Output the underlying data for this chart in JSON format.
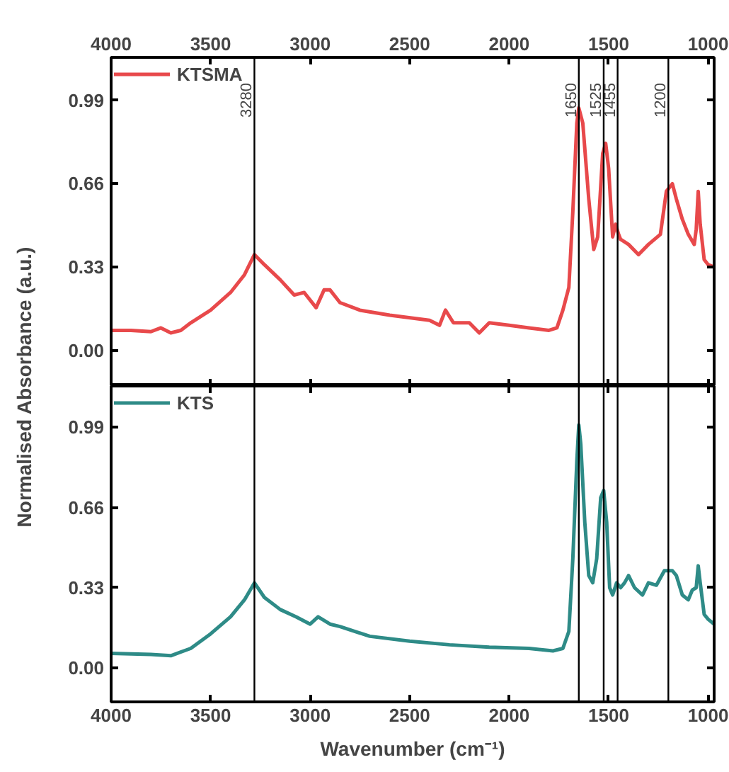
{
  "chart_data": [
    {
      "type": "line",
      "ylabel": "Normalised Absorbance (a.u.)",
      "xlim": [
        4000,
        970
      ],
      "xticks": [
        4000,
        3500,
        3000,
        2500,
        2000,
        1500,
        1000
      ],
      "ylim": [
        -0.14,
        1.16
      ],
      "yticks": [
        {
          "value": 0,
          "label": "0.00"
        },
        0.33,
        0.66,
        0.99
      ],
      "legend": "top left",
      "grid": false,
      "ref_lines": [
        {
          "axis": "x",
          "value": 3280,
          "label": "3280"
        },
        {
          "axis": "x",
          "value": 1650,
          "label": "1650"
        },
        {
          "axis": "x",
          "value": 1525,
          "label": "1525"
        },
        {
          "axis": "x",
          "value": 1455,
          "label": "1455"
        },
        {
          "axis": "x",
          "value": 1200,
          "label": "1200"
        }
      ],
      "series": [
        {
          "name": "KTSMA",
          "color": "#e8494b",
          "x": [
            4000,
            3900,
            3800,
            3750,
            3700,
            3650,
            3600,
            3500,
            3400,
            3330,
            3280,
            3230,
            3150,
            3080,
            3030,
            2970,
            2930,
            2900,
            2850,
            2750,
            2600,
            2400,
            2350,
            2320,
            2280,
            2200,
            2150,
            2100,
            2000,
            1900,
            1800,
            1760,
            1730,
            1700,
            1680,
            1660,
            1650,
            1630,
            1600,
            1575,
            1555,
            1530,
            1515,
            1500,
            1480,
            1465,
            1450,
            1440,
            1400,
            1350,
            1300,
            1240,
            1210,
            1180,
            1160,
            1130,
            1100,
            1070,
            1060,
            1050,
            1040,
            1020,
            1000,
            970
          ],
          "values": [
            0.08,
            0.08,
            0.075,
            0.09,
            0.07,
            0.08,
            0.11,
            0.16,
            0.23,
            0.3,
            0.38,
            0.34,
            0.28,
            0.22,
            0.23,
            0.17,
            0.24,
            0.24,
            0.19,
            0.16,
            0.14,
            0.12,
            0.1,
            0.16,
            0.11,
            0.11,
            0.07,
            0.11,
            0.1,
            0.09,
            0.08,
            0.09,
            0.16,
            0.25,
            0.55,
            0.9,
            0.96,
            0.9,
            0.6,
            0.4,
            0.45,
            0.78,
            0.82,
            0.72,
            0.45,
            0.5,
            0.46,
            0.44,
            0.42,
            0.38,
            0.42,
            0.46,
            0.63,
            0.66,
            0.6,
            0.52,
            0.46,
            0.42,
            0.48,
            0.63,
            0.5,
            0.36,
            0.34,
            0.33
          ]
        }
      ]
    },
    {
      "type": "line",
      "xlabel": "Wavenumber (cm⁻¹)",
      "xlim": [
        4000,
        970
      ],
      "xticks": [
        4000,
        3500,
        3000,
        2500,
        2000,
        1500,
        1000
      ],
      "ylim": [
        -0.14,
        1.16
      ],
      "yticks": [
        {
          "value": 0,
          "label": "0.00"
        },
        0.33,
        0.66,
        0.99
      ],
      "legend": "top left",
      "grid": false,
      "ref_lines": [
        {
          "axis": "x",
          "value": 3280
        },
        {
          "axis": "x",
          "value": 1650
        },
        {
          "axis": "x",
          "value": 1525
        },
        {
          "axis": "x",
          "value": 1455
        },
        {
          "axis": "x",
          "value": 1200
        }
      ],
      "series": [
        {
          "name": "KTS",
          "color": "#2e8b87",
          "x": [
            4000,
            3800,
            3700,
            3600,
            3500,
            3400,
            3330,
            3280,
            3230,
            3150,
            3070,
            3000,
            2960,
            2900,
            2850,
            2700,
            2500,
            2300,
            2100,
            1900,
            1780,
            1730,
            1700,
            1680,
            1660,
            1650,
            1640,
            1620,
            1600,
            1580,
            1560,
            1540,
            1525,
            1510,
            1495,
            1480,
            1460,
            1440,
            1420,
            1400,
            1370,
            1330,
            1300,
            1260,
            1220,
            1180,
            1160,
            1130,
            1100,
            1080,
            1060,
            1050,
            1040,
            1020,
            1000,
            970
          ],
          "values": [
            0.06,
            0.055,
            0.05,
            0.08,
            0.14,
            0.21,
            0.28,
            0.35,
            0.29,
            0.24,
            0.21,
            0.18,
            0.21,
            0.18,
            0.17,
            0.13,
            0.11,
            0.095,
            0.085,
            0.08,
            0.07,
            0.08,
            0.15,
            0.45,
            0.85,
            1.0,
            0.92,
            0.6,
            0.38,
            0.35,
            0.45,
            0.7,
            0.73,
            0.6,
            0.33,
            0.3,
            0.35,
            0.33,
            0.35,
            0.38,
            0.33,
            0.3,
            0.35,
            0.34,
            0.4,
            0.4,
            0.38,
            0.3,
            0.28,
            0.32,
            0.33,
            0.42,
            0.35,
            0.22,
            0.2,
            0.18
          ]
        }
      ]
    }
  ]
}
